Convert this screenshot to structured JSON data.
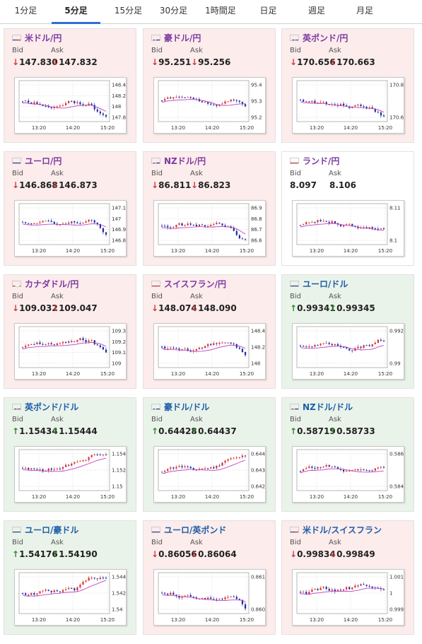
{
  "tabs": [
    "1分足",
    "5分足",
    "15分足",
    "30分足",
    "1時間足",
    "日足",
    "週足",
    "月足"
  ],
  "active_tab": "5分足",
  "labels": {
    "bid": "Bid",
    "ask": "Ask"
  },
  "x_ticks": [
    "13:20",
    "14:20",
    "15:20"
  ],
  "colors": {
    "up_candle": "#d83232",
    "down_candle": "#1f2f9e",
    "ma_line": "#c040c0",
    "price_line": "#1f9ad6"
  },
  "cards": [
    {
      "pair": "米ドル/円",
      "flag": "us-flag-icon",
      "dir": "down",
      "bid": "147.830",
      "ask": "147.832",
      "yticks": [
        "148.4",
        "148.2",
        "148",
        "147.8"
      ]
    },
    {
      "pair": "豪ドル/円",
      "flag": "au-flag-icon",
      "dir": "down",
      "bid": "95.251",
      "ask": "95.256",
      "yticks": [
        "95.4",
        "95.3",
        "95.2"
      ]
    },
    {
      "pair": "英ポンド/円",
      "flag": "gb-flag-icon",
      "dir": "down",
      "bid": "170.656",
      "ask": "170.663",
      "yticks": [
        "170.8",
        "170.6"
      ]
    },
    {
      "pair": "ユーロ/円",
      "flag": "eu-flag-icon",
      "dir": "down",
      "bid": "146.868",
      "ask": "146.873",
      "yticks": [
        "147.1",
        "147",
        "146.9",
        "146.8"
      ]
    },
    {
      "pair": "NZドル/円",
      "flag": "nz-flag-icon",
      "dir": "down",
      "bid": "86.811",
      "ask": "86.823",
      "yticks": [
        "86.9",
        "86.8",
        "86.7",
        "86.6"
      ]
    },
    {
      "pair": "ランド/円",
      "flag": "za-flag-icon",
      "dir": "none",
      "bid": "8.097",
      "ask": "8.106",
      "yticks": [
        "8.11",
        "8.1"
      ]
    },
    {
      "pair": "カナダドル/円",
      "flag": "ca-flag-icon",
      "dir": "down",
      "bid": "109.032",
      "ask": "109.047",
      "yticks": [
        "109.3",
        "109.2",
        "109.1",
        "109"
      ]
    },
    {
      "pair": "スイスフラン/円",
      "flag": "ch-flag-icon",
      "dir": "down",
      "bid": "148.074",
      "ask": "148.090",
      "yticks": [
        "148.4",
        "148.2",
        "148"
      ]
    },
    {
      "pair": "ユーロ/ドル",
      "flag": "eu-flag-icon",
      "dir": "up",
      "bid": "0.99341",
      "ask": "0.99345",
      "yticks": [
        "0.992",
        "0.99"
      ]
    },
    {
      "pair": "英ポンド/ドル",
      "flag": "gb-flag-icon",
      "dir": "up",
      "bid": "1.15434",
      "ask": "1.15444",
      "yticks": [
        "1.154",
        "1.152",
        "1.15"
      ]
    },
    {
      "pair": "豪ドル/ドル",
      "flag": "au-flag-icon",
      "dir": "up",
      "bid": "0.64428",
      "ask": "0.64437",
      "yticks": [
        "0.644",
        "0.643",
        "0.642"
      ]
    },
    {
      "pair": "NZドル/ドル",
      "flag": "nz-flag-icon",
      "dir": "up",
      "bid": "0.58719",
      "ask": "0.58733",
      "yticks": [
        "0.586",
        "0.584"
      ]
    },
    {
      "pair": "ユーロ/豪ドル",
      "flag": "eu-flag-icon",
      "dir": "up",
      "bid": "1.54176",
      "ask": "1.54190",
      "yticks": [
        "1.544",
        "1.542",
        "1.54"
      ]
    },
    {
      "pair": "ユーロ/英ポンド",
      "flag": "eu-flag-icon",
      "dir": "down",
      "bid": "0.86056",
      "ask": "0.86064",
      "yticks": [
        "0.861",
        "0.8605"
      ]
    },
    {
      "pair": "米ドル/スイスフラン",
      "flag": "us-flag-icon",
      "dir": "down",
      "bid": "0.99834",
      "ask": "0.99849",
      "yticks": [
        "1.001",
        "1",
        "0.999"
      ]
    }
  ]
}
